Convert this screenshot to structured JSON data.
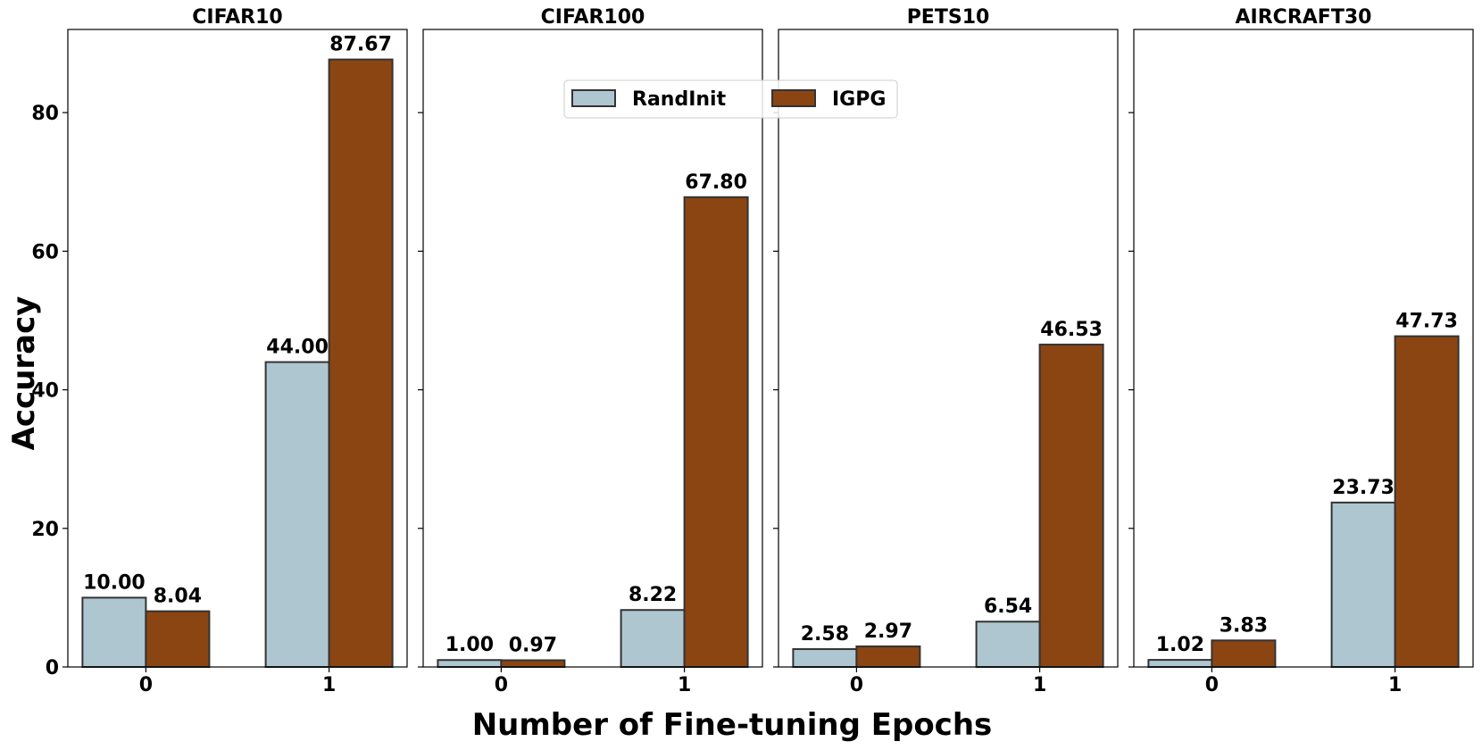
{
  "chart_data": {
    "type": "bar",
    "ylabel": "Accuracy",
    "xlabel": "Number of Fine-tuning Epochs",
    "ylim": [
      0,
      92
    ],
    "yticks": [
      0,
      20,
      40,
      60,
      80
    ],
    "categories": [
      "0",
      "1"
    ],
    "legend": {
      "placement": "top-center",
      "entries": [
        "RandInit",
        "IGPG"
      ]
    },
    "colors": {
      "RandInit": "#aec6cf",
      "IGPG": "#8b4513",
      "edge": "#333333"
    },
    "grid": false,
    "panels": [
      {
        "title": "CIFAR10",
        "series": [
          {
            "name": "RandInit",
            "values": [
              10.0,
              44.0
            ],
            "labels": [
              "10.00",
              "44.00"
            ]
          },
          {
            "name": "IGPG",
            "values": [
              8.04,
              87.67
            ],
            "labels": [
              "8.04",
              "87.67"
            ]
          }
        ]
      },
      {
        "title": "CIFAR100",
        "series": [
          {
            "name": "RandInit",
            "values": [
              1.0,
              8.22
            ],
            "labels": [
              "1.00",
              "8.22"
            ]
          },
          {
            "name": "IGPG",
            "values": [
              0.97,
              67.8
            ],
            "labels": [
              "0.97",
              "67.80"
            ]
          }
        ]
      },
      {
        "title": "PETS10",
        "series": [
          {
            "name": "RandInit",
            "values": [
              2.58,
              6.54
            ],
            "labels": [
              "2.58",
              "6.54"
            ]
          },
          {
            "name": "IGPG",
            "values": [
              2.97,
              46.53
            ],
            "labels": [
              "2.97",
              "46.53"
            ]
          }
        ]
      },
      {
        "title": "AIRCRAFT30",
        "series": [
          {
            "name": "RandInit",
            "values": [
              1.02,
              23.73
            ],
            "labels": [
              "1.02",
              "23.73"
            ]
          },
          {
            "name": "IGPG",
            "values": [
              3.83,
              47.73
            ],
            "labels": [
              "3.83",
              "47.73"
            ]
          }
        ]
      }
    ]
  }
}
